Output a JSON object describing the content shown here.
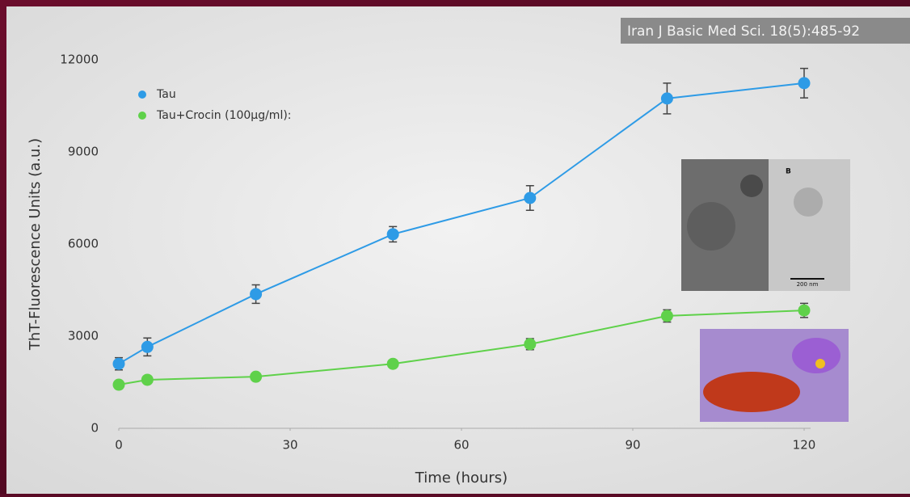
{
  "chart_data": {
    "type": "line",
    "source": "Iran J Basic Med Sci. 18(5):485-92",
    "xlabel": "Time (hours)",
    "ylabel": "ThT-Fluorescence Units (a.u.)",
    "x": [
      0,
      5,
      24,
      48,
      72,
      96,
      120
    ],
    "series": [
      {
        "name": "Tau",
        "color": "#2e9be6",
        "values": [
          2100,
          2650,
          4370,
          6320,
          7500,
          10740,
          11240
        ],
        "errors": [
          200,
          290,
          300,
          250,
          400,
          500,
          480
        ]
      },
      {
        "name": "Tau+Crocin (100µg/ml):",
        "color": "#5fd14a",
        "values": [
          1420,
          1580,
          1680,
          2100,
          2740,
          3660,
          3840
        ],
        "errors": [
          100,
          100,
          100,
          100,
          180,
          200,
          230
        ]
      }
    ],
    "xlim": [
      0,
      120
    ],
    "ylim": [
      0,
      12000
    ],
    "xticks": [
      0,
      30,
      60,
      90,
      120
    ],
    "yticks": [
      0,
      3000,
      6000,
      9000,
      12000
    ],
    "grid": false,
    "legend": "top-left",
    "inset_labels": [
      "B",
      "200 nm"
    ]
  }
}
